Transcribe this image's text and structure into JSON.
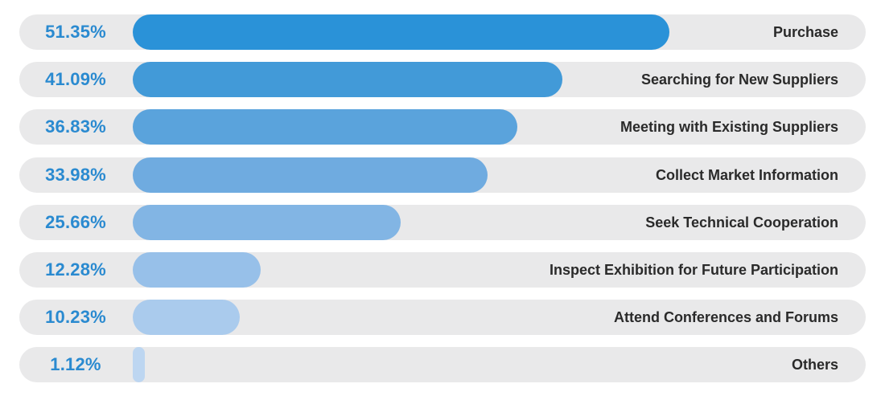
{
  "chart_data": {
    "type": "bar",
    "orientation": "horizontal",
    "categories": [
      "Purchase",
      "Searching for New Suppliers",
      "Meeting with Existing Suppliers",
      "Collect Market Information",
      "Seek Technical Cooperation",
      "Inspect Exhibition for Future Participation",
      "Attend Conferences and Forums",
      "Others"
    ],
    "value_labels": [
      "51.35%",
      "41.09%",
      "36.83%",
      "33.98%",
      "25.66%",
      "12.28%",
      "10.23%",
      "1.12%"
    ],
    "values": [
      51.35,
      41.09,
      36.83,
      33.98,
      25.66,
      12.28,
      10.23,
      1.12
    ],
    "xlim": [
      0,
      77
    ],
    "grid": false,
    "bar_colors": [
      "#2a92d8",
      "#429ad8",
      "#5aa3dc",
      "#6fabe0",
      "#82b5e4",
      "#97c0e9",
      "#aacbed",
      "#bdd6f1"
    ],
    "track_color": "#e9e9ea",
    "value_label_color": "#2a8ad0"
  }
}
